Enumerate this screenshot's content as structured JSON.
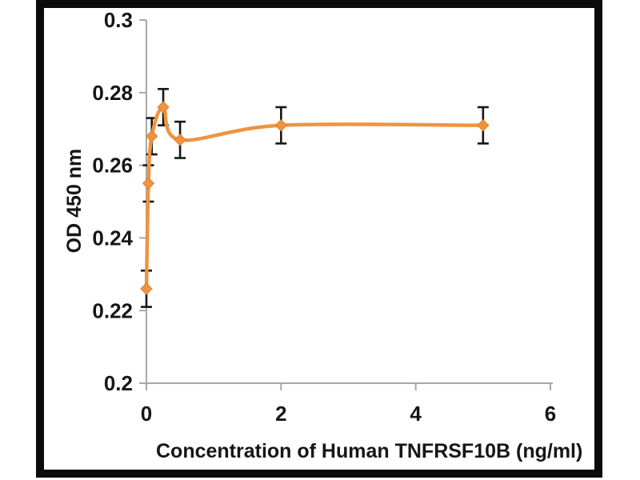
{
  "chart_data": {
    "type": "line",
    "title": "",
    "xlabel": "Concentration of Human TNFRSF10B (ng/ml)",
    "ylabel": "OD 450 nm",
    "x": [
      0,
      0.03,
      0.08,
      0.25,
      0.5,
      2,
      5
    ],
    "y": [
      0.226,
      0.255,
      0.268,
      0.276,
      0.267,
      0.271,
      0.271
    ],
    "y_error": [
      0.005,
      0.005,
      0.005,
      0.005,
      0.005,
      0.005,
      0.005
    ],
    "xlim": [
      0,
      6
    ],
    "ylim": [
      0.2,
      0.3
    ],
    "x_ticks": [
      0,
      2,
      4,
      6
    ],
    "x_tick_labels": [
      "0",
      "2",
      "4",
      "6"
    ],
    "y_ticks": [
      0.3,
      0.28,
      0.26,
      0.24,
      0.22,
      0.2
    ],
    "y_tick_labels": [
      "0.3",
      "0.28",
      "0.26",
      "0.24",
      "0.22",
      "0.2"
    ],
    "grid": false,
    "legend": "none",
    "marker": "diamond",
    "line_style": "smooth",
    "colors": {
      "series_line": "#EE9440",
      "series_marker": "#EE9440",
      "series_marker_edge": "#E0802A",
      "error_bar": "#161616",
      "axis": "#A8A8A8",
      "text": "#161616",
      "frame": "#0B0B0B",
      "background": "#FFFFFF"
    }
  }
}
